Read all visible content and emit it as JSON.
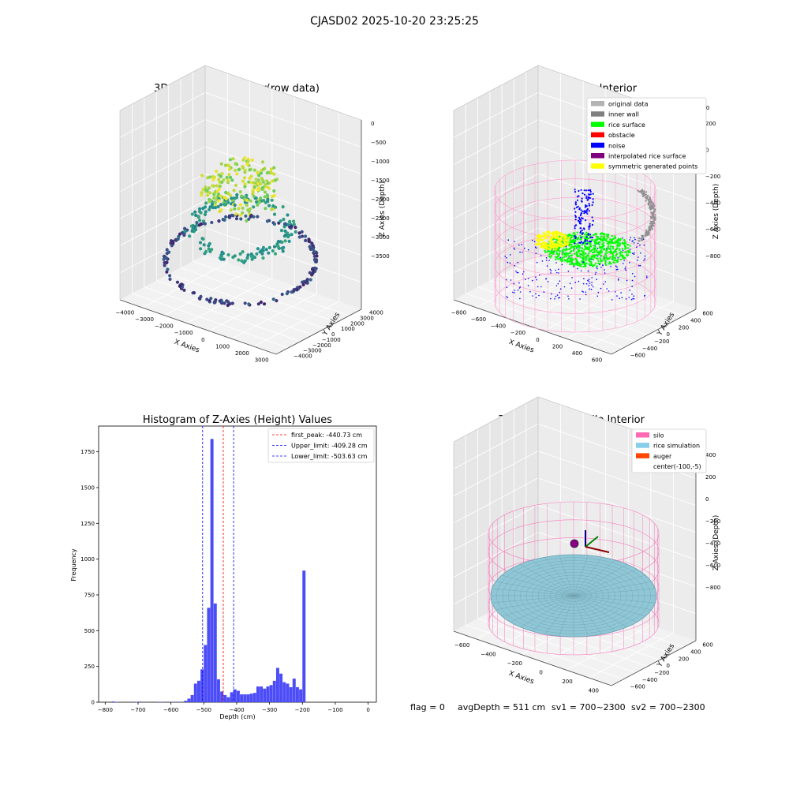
{
  "figure": {
    "suptitle": "CJASD02 2025-10-20 23:25:25"
  },
  "chart_data": [
    {
      "type": "scatter",
      "title": "3D Plot of Silo Interior(row data)",
      "xlabel": "X Axies",
      "ylabel": "Y Axies",
      "zlabel": "Z Axies (Depth)",
      "x_ticks": [
        "−4000",
        "−3000",
        "−2000",
        "−1000",
        "0",
        "1000",
        "2000",
        "3000"
      ],
      "y_ticks": [
        "4000",
        "3000",
        "2000",
        "1000",
        "0",
        "−1000",
        "−2000",
        "−3000",
        "−4000"
      ],
      "z_ticks": [
        "0",
        "−500",
        "−1000",
        "−1500",
        "−2000",
        "−2500",
        "−3000",
        "−3500"
      ],
      "colormap": "viridis",
      "grid": true
    },
    {
      "type": "scatter",
      "title": "3D classify of Silo Interior",
      "xlabel": "X Axies",
      "ylabel": "Y Axies",
      "zlabel": "Z Axies (Depth)",
      "x_ticks": [
        "−800",
        "−600",
        "−400",
        "−200",
        "0",
        "200",
        "400",
        "600"
      ],
      "y_ticks": [
        "600",
        "400",
        "200",
        "0",
        "−200",
        "−400",
        "−600"
      ],
      "z_ticks": [
        "200",
        "0",
        "−200",
        "−400",
        "−600",
        "−800"
      ],
      "z_top_tick": "400",
      "legend": {
        "position": "top-right",
        "entries": [
          {
            "label": "original data",
            "color": "#b3b3b3"
          },
          {
            "label": "inner wall",
            "color": "#808080"
          },
          {
            "label": "rice surface",
            "color": "#00ff00"
          },
          {
            "label": "obstacle",
            "color": "#ff0000"
          },
          {
            "label": "noise",
            "color": "#0000ff"
          },
          {
            "label": "interpolated rice surface",
            "color": "#800080"
          },
          {
            "label": "symmetric generated points",
            "color": "#ffff00"
          }
        ]
      },
      "grid": true
    },
    {
      "type": "bar",
      "title": "Histogram of Z-Axies (Height) Values",
      "xlabel": "Depth (cm)",
      "ylabel": "Frequency",
      "xlim": [
        -820,
        25
      ],
      "ylim": [
        0,
        1930
      ],
      "x_ticks": [
        -800,
        -700,
        -600,
        -500,
        -400,
        -300,
        -200,
        -100,
        0
      ],
      "x_tick_labels": [
        "−800",
        "−700",
        "−600",
        "−500",
        "−400",
        "−300",
        "−200",
        "−100",
        "0"
      ],
      "y_ticks": [
        0,
        250,
        500,
        750,
        1000,
        1250,
        1500,
        1750
      ],
      "bar_color": "#4d4df7",
      "bin_width": 10,
      "bins": [
        {
          "x": -780,
          "v": 5
        },
        {
          "x": -770,
          "v": 3
        },
        {
          "x": -710,
          "v": 3
        },
        {
          "x": -700,
          "v": 4
        },
        {
          "x": -640,
          "v": 3
        },
        {
          "x": -630,
          "v": 3
        },
        {
          "x": -600,
          "v": 3
        },
        {
          "x": -580,
          "v": 3
        },
        {
          "x": -560,
          "v": 10
        },
        {
          "x": -550,
          "v": 25
        },
        {
          "x": -540,
          "v": 50
        },
        {
          "x": -530,
          "v": 130
        },
        {
          "x": -520,
          "v": 150
        },
        {
          "x": -510,
          "v": 230
        },
        {
          "x": -500,
          "v": 400
        },
        {
          "x": -490,
          "v": 660
        },
        {
          "x": -480,
          "v": 1840
        },
        {
          "x": -470,
          "v": 690
        },
        {
          "x": -460,
          "v": 160
        },
        {
          "x": -450,
          "v": 75
        },
        {
          "x": -440,
          "v": 50
        },
        {
          "x": -430,
          "v": 35
        },
        {
          "x": -420,
          "v": 70
        },
        {
          "x": -410,
          "v": 90
        },
        {
          "x": -400,
          "v": 80
        },
        {
          "x": -390,
          "v": 55
        },
        {
          "x": -380,
          "v": 55
        },
        {
          "x": -370,
          "v": 55
        },
        {
          "x": -360,
          "v": 60
        },
        {
          "x": -350,
          "v": 65
        },
        {
          "x": -340,
          "v": 110
        },
        {
          "x": -330,
          "v": 110
        },
        {
          "x": -320,
          "v": 95
        },
        {
          "x": -310,
          "v": 110
        },
        {
          "x": -300,
          "v": 120
        },
        {
          "x": -290,
          "v": 150
        },
        {
          "x": -280,
          "v": 240
        },
        {
          "x": -270,
          "v": 200
        },
        {
          "x": -260,
          "v": 140
        },
        {
          "x": -250,
          "v": 130
        },
        {
          "x": -240,
          "v": 105
        },
        {
          "x": -230,
          "v": 165
        },
        {
          "x": -220,
          "v": 105
        },
        {
          "x": -210,
          "v": 90
        },
        {
          "x": -200,
          "v": 920
        }
      ],
      "vlines": [
        {
          "label": "first_peak: -440.73 cm",
          "value": -440.73,
          "color": "#ff0000"
        },
        {
          "label": "Upper_limit: -409.28 cm",
          "value": -409.28,
          "color": "#0000ff"
        },
        {
          "label": "Lower_limit: -503.63 cm",
          "value": -503.63,
          "color": "#0000ff"
        }
      ],
      "legend_position": "top-right"
    },
    {
      "type": "scatter",
      "title": "3D simulation of Silo Interior",
      "xlabel": "X Axies",
      "ylabel": "Y Axies",
      "zlabel": "Z Axies (Depth)",
      "x_ticks": [
        "−600",
        "−400",
        "−200",
        "0",
        "200",
        "400"
      ],
      "y_ticks": [
        "600",
        "400",
        "200",
        "0",
        "−200",
        "−400",
        "−600"
      ],
      "z_ticks": [
        "400",
        "200",
        "0",
        "−200",
        "−400",
        "−600",
        "−800"
      ],
      "legend": {
        "position": "top-right",
        "entries": [
          {
            "label": "silo",
            "color": "#ff69b4"
          },
          {
            "label": "rice simulation",
            "color": "#87ceeb"
          },
          {
            "label": "auger",
            "color": "#ff4500"
          },
          {
            "label": "center(-100,-5)",
            "color": ""
          }
        ]
      },
      "grid": true
    }
  ],
  "status": {
    "flag": "flag = 0",
    "avg_depth": "avgDepth = 511 cm",
    "sv1": "sv1 = 700~2300",
    "sv2": "sv2 = 700~2300"
  }
}
